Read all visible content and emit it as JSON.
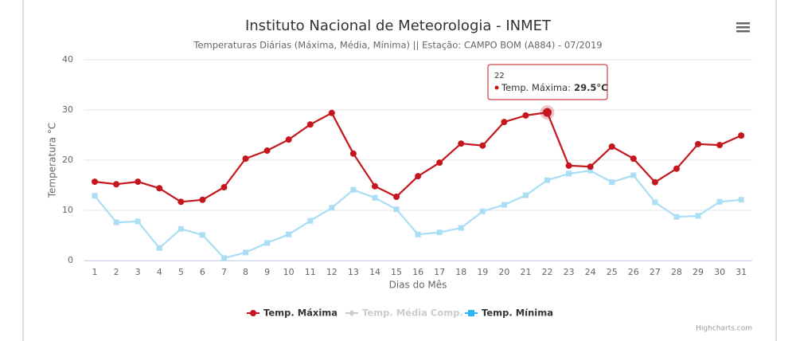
{
  "chart_data": {
    "type": "line",
    "title": "Instituto Nacional de Meteorologia - INMET",
    "subtitle": "Temperaturas Diárias (Máxima, Média, Mínima) || Estação: CAMPO BOM (A884) - 07/2019",
    "y_label": "Temperatura °C",
    "x_label": "Dias do Mês",
    "categories": [
      "1",
      "2",
      "3",
      "4",
      "5",
      "6",
      "7",
      "8",
      "9",
      "10",
      "11",
      "12",
      "13",
      "14",
      "15",
      "16",
      "17",
      "18",
      "19",
      "20",
      "21",
      "22",
      "23",
      "24",
      "25",
      "26",
      "27",
      "28",
      "29",
      "30",
      "31"
    ],
    "series": [
      {
        "name": "Temp. Máxima",
        "color": "#c4161c",
        "marker": "circle",
        "visible": true,
        "values": [
          15.7,
          15.2,
          15.7,
          14.4,
          11.7,
          12.1,
          14.6,
          20.3,
          21.9,
          24.1,
          27.1,
          29.4,
          21.3,
          14.8,
          12.7,
          16.8,
          19.5,
          23.3,
          22.9,
          27.6,
          28.9,
          29.5,
          18.9,
          18.7,
          22.7,
          20.3,
          15.6,
          18.3,
          23.2,
          23.0,
          24.9
        ]
      },
      {
        "name": "Temp. Média Comp.",
        "color": "#cccccc",
        "marker": "diamond",
        "visible": false,
        "values": [
          null,
          null,
          null,
          null,
          null,
          null,
          null,
          null,
          null,
          null,
          null,
          null,
          null,
          null,
          null,
          null,
          null,
          null,
          null,
          null,
          null,
          null,
          null,
          null,
          null,
          null,
          null,
          null,
          null,
          null,
          null
        ]
      },
      {
        "name": "Temp. Mínima",
        "color": "#a9def5",
        "marker": "square",
        "visible": true,
        "values": [
          12.9,
          7.6,
          7.8,
          2.5,
          6.3,
          5.1,
          0.5,
          1.6,
          3.5,
          5.2,
          7.9,
          10.5,
          14.1,
          12.5,
          10.2,
          5.2,
          5.6,
          6.5,
          9.8,
          11.1,
          13.0,
          16.0,
          17.3,
          17.9,
          15.6,
          17.0,
          11.6,
          8.7,
          8.9,
          11.7,
          12.1
        ]
      }
    ],
    "ylim": [
      0,
      40
    ],
    "yticks": [
      0,
      10,
      20,
      30,
      40
    ],
    "grid": true,
    "legend": "bottom",
    "tooltip": {
      "header": "22",
      "label": "Temp. Máxima:",
      "value": "29.5°C",
      "series": 0,
      "index": 21
    },
    "credits": "Highcharts.com"
  }
}
